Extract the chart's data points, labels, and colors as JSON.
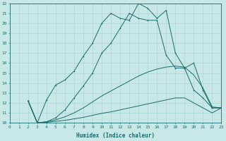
{
  "xlabel": "Humidex (Indice chaleur)",
  "bg_color": "#c8e8e8",
  "line_color": "#1a6b6b",
  "grid_color": "#a8d0d0",
  "xlim": [
    0,
    23
  ],
  "ylim": [
    10,
    22
  ],
  "xticks": [
    0,
    1,
    2,
    3,
    4,
    5,
    6,
    7,
    8,
    9,
    10,
    11,
    12,
    13,
    14,
    15,
    16,
    17,
    18,
    19,
    20,
    21,
    22,
    23
  ],
  "yticks": [
    10,
    11,
    12,
    13,
    14,
    15,
    16,
    17,
    18,
    19,
    20,
    21,
    22
  ],
  "line1_x": [
    2,
    3,
    4,
    5,
    6,
    7,
    8,
    9,
    10,
    11,
    12,
    13,
    14,
    15,
    16,
    17,
    18,
    19,
    20,
    21,
    22,
    23
  ],
  "line1_y": [
    12.2,
    10.0,
    10.05,
    10.15,
    10.25,
    10.4,
    10.55,
    10.75,
    10.95,
    11.1,
    11.3,
    11.5,
    11.7,
    11.9,
    12.1,
    12.3,
    12.5,
    12.5,
    12.0,
    11.5,
    11.0,
    11.5
  ],
  "line2_x": [
    2,
    3,
    4,
    5,
    6,
    7,
    8,
    9,
    10,
    11,
    12,
    13,
    14,
    15,
    16,
    17,
    18,
    19,
    20,
    21,
    22,
    23
  ],
  "line2_y": [
    12.2,
    10.0,
    10.1,
    10.3,
    10.6,
    11.0,
    11.5,
    12.1,
    12.7,
    13.2,
    13.7,
    14.2,
    14.7,
    15.1,
    15.4,
    15.6,
    15.7,
    15.6,
    14.8,
    13.5,
    11.6,
    11.5
  ],
  "line3_x": [
    2,
    3,
    4,
    5,
    6,
    7,
    8,
    9,
    10,
    11,
    12,
    13,
    14,
    15,
    16,
    17,
    18,
    19,
    20,
    21,
    22,
    23
  ],
  "line3_y": [
    12.2,
    10.0,
    10.1,
    10.5,
    11.3,
    12.5,
    13.7,
    15.0,
    17.0,
    18.0,
    19.5,
    21.0,
    20.5,
    20.3,
    20.3,
    16.8,
    15.5,
    15.5,
    16.0,
    13.3,
    11.5,
    11.5
  ],
  "line4_x": [
    2,
    3,
    4,
    5,
    6,
    7,
    8,
    9,
    10,
    11,
    12,
    13,
    14,
    15,
    16,
    17,
    18,
    19,
    20,
    21,
    22,
    23
  ],
  "line4_y": [
    12.2,
    10.0,
    12.3,
    13.8,
    14.3,
    15.2,
    16.7,
    18.0,
    20.0,
    21.0,
    20.5,
    20.3,
    22.0,
    21.5,
    20.5,
    21.3,
    17.0,
    15.5,
    13.3,
    12.5,
    11.5,
    11.5
  ]
}
